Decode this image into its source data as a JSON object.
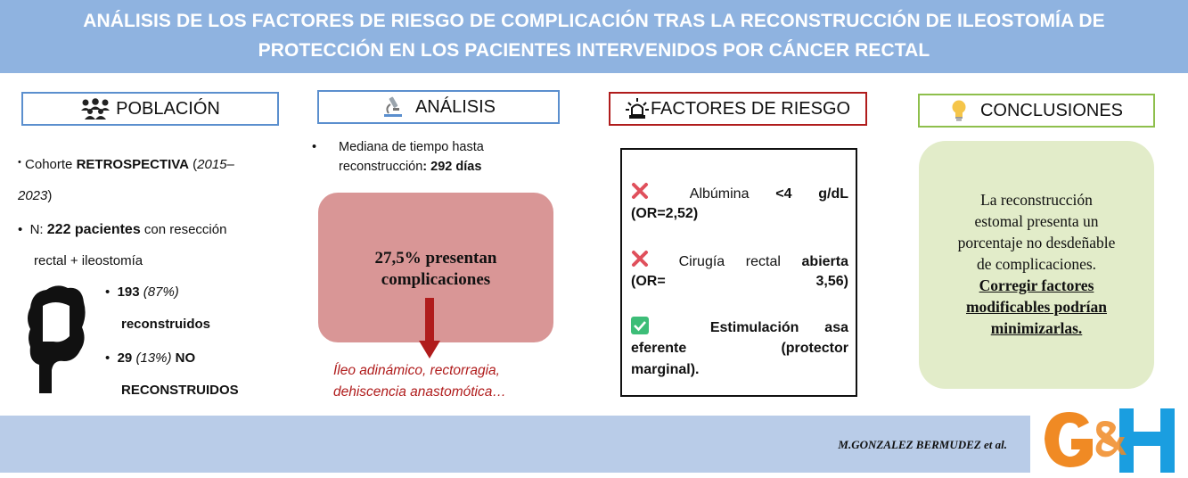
{
  "header": {
    "title_line1": "ANÁLISIS DE LOS  FACTORES DE RIESGO DE COMPLICACIÓN TRAS LA RECONSTRUCCIÓN DE ILEOSTOMÍA DE",
    "title_line2": "PROTECCIÓN EN LOS PACIENTES INTERVENIDOS POR CÁNCER RECTAL"
  },
  "sections": {
    "poblacion": "POBLACIÓN",
    "analisis": "ANÁLISIS",
    "factores": "FACTORES DE RIESGO",
    "conclusiones": "CONCLUSIONES"
  },
  "poblacion": {
    "bullet1_prefix": "Cohorte ",
    "bullet1_bold": "RETROSPECTIVA",
    "bullet1_open": " (",
    "bullet1_italic": "2015–",
    "bullet1_line2_italic": "2023",
    "bullet1_close": ")",
    "bullet2_prefix": "N: ",
    "bullet2_bold": "222 pacientes",
    "bullet2_suffix": " con resección",
    "bullet2_line2": "rectal + ileostomía",
    "sub1_bold": "193",
    "sub1_italic": " (87%)",
    "sub1_line2_bold": "reconstruidos",
    "sub2_bold": "29",
    "sub2_italic": " (13%)",
    "sub2_bold_suffix": " NO",
    "sub2_line2_bold": "RECONSTRUIDOS"
  },
  "analisis": {
    "bullet_line1": "Mediana de tiempo hasta",
    "bullet_line2_prefix": "reconstrucción",
    "bullet_line2_bold": ": 292 días",
    "box_line1": "27,5%  presentan",
    "box_line2": "complicaciones",
    "complications_line1": "Íleo adinámico, rectorragia,",
    "complications_line2": "dehiscencia anastomótica…"
  },
  "risk_factors": [
    {
      "line1_normal": "Albúmina",
      "line1_bold": "<4  g/dL",
      "line2_bold": "(OR=2,52)",
      "icon": "cross-icon"
    },
    {
      "line1_normal": "Cirugía  rectal",
      "line1_bold": "abierta",
      "line2_bold_a": "(OR=",
      "line2_bold_b": "3,56)",
      "icon": "cross-icon"
    },
    {
      "line1_bold": "Estimulación  asa",
      "line2_bold_a": "eferente",
      "line2_bold_b": "(protector",
      "line3_bold": "marginal).",
      "icon": "check-icon"
    }
  ],
  "conclusiones": {
    "line1": "La reconstrucción",
    "line2": "estomal presenta un",
    "line3": "porcentaje no desdeñable",
    "line4": "de complicaciones.",
    "line5": "Corregir factores",
    "line6": "modificables podrían",
    "line7": "minimizarlas."
  },
  "footer": {
    "author": "M.GONZALEZ BERMUDEZ et al."
  },
  "colors": {
    "header_bg": "#8fb3e0",
    "box_blue": "#5b8fce",
    "box_red": "#b01c1c",
    "box_green": "#8ebf4c",
    "analysis_box": "#d99696",
    "conclusion_box": "#e2ecc9",
    "footer_bg": "#b9cce8",
    "logo_orange": "#f08a24",
    "logo_blue": "#1a9ee0"
  }
}
